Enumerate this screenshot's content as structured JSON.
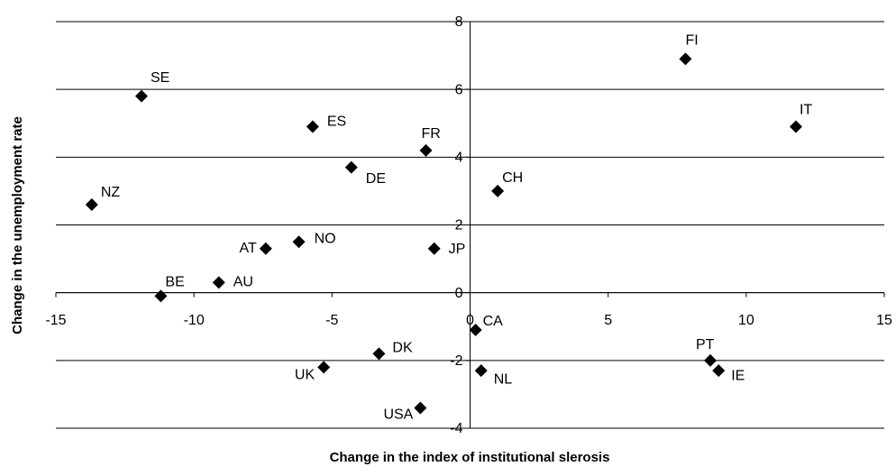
{
  "chart_data": {
    "type": "scatter",
    "x_label": "Change in the index of institutional slerosis",
    "y_label": "Change in the unemployment rate",
    "point_labels": [
      "SE",
      "NZ",
      "ES",
      "DE",
      "FR",
      "CH",
      "FI",
      "IT",
      "AT",
      "NO",
      "JP",
      "BE",
      "AU",
      "CA",
      "DK",
      "UK",
      "NL",
      "PT",
      "IE",
      "USA"
    ],
    "x": [
      -11.9,
      -13.7,
      -5.7,
      -4.3,
      -1.6,
      1.0,
      7.8,
      11.8,
      -7.4,
      -6.2,
      -1.3,
      -11.2,
      -9.1,
      0.2,
      -3.3,
      -5.3,
      0.4,
      8.7,
      9.0,
      -1.8
    ],
    "values": [
      5.8,
      2.6,
      4.9,
      3.7,
      4.2,
      3.0,
      6.9,
      4.9,
      1.3,
      1.5,
      1.3,
      -0.1,
      0.3,
      -1.1,
      -1.8,
      -2.2,
      -2.3,
      -2.0,
      -2.3,
      -3.4
    ],
    "color": "#000000",
    "xlim": [
      -15,
      15
    ],
    "xticks": [
      -15,
      -10,
      -5,
      0,
      5,
      10,
      15
    ],
    "ylim": [
      -4,
      8
    ],
    "yticks": [
      -4,
      -2,
      0,
      2,
      4,
      6,
      8
    ],
    "grid": true
  }
}
